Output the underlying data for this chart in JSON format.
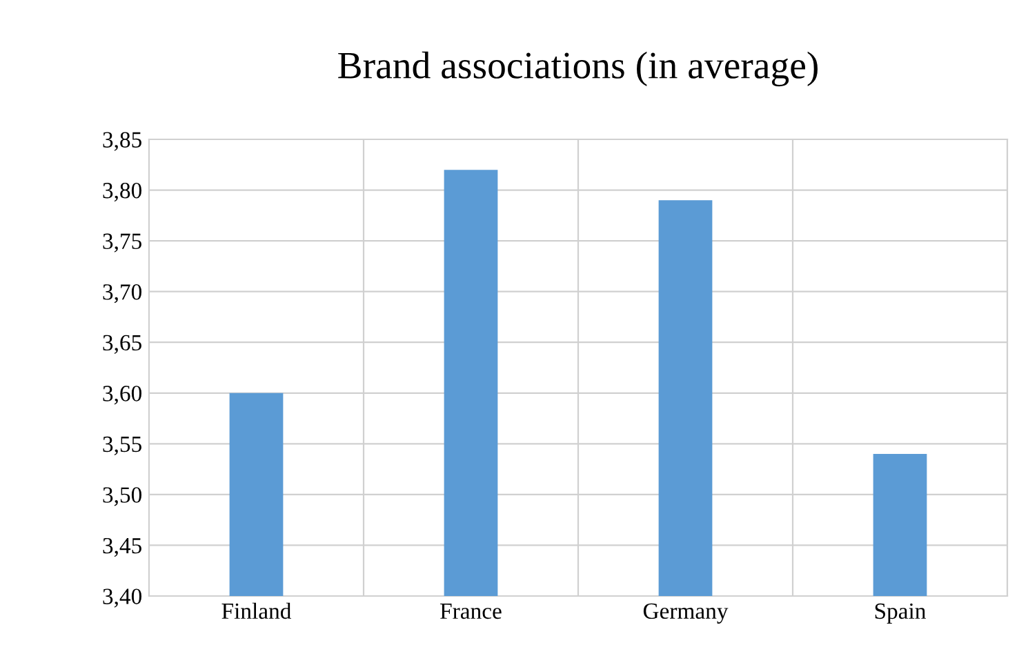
{
  "chart_data": {
    "type": "bar",
    "title": "Brand associations (in average)",
    "categories": [
      "Finland",
      "France",
      "Germany",
      "Spain"
    ],
    "values": [
      3.6,
      3.82,
      3.79,
      3.54
    ],
    "color": "#5b9bd5",
    "ylim": [
      3.4,
      3.85
    ],
    "yticks": [
      {
        "value": 3.4,
        "label": "3,40"
      },
      {
        "value": 3.45,
        "label": "3,45"
      },
      {
        "value": 3.5,
        "label": "3,50"
      },
      {
        "value": 3.55,
        "label": "3,55"
      },
      {
        "value": 3.6,
        "label": "3,60"
      },
      {
        "value": 3.65,
        "label": "3,65"
      },
      {
        "value": 3.7,
        "label": "3,70"
      },
      {
        "value": 3.75,
        "label": "3,75"
      },
      {
        "value": 3.8,
        "label": "3,80"
      },
      {
        "value": 3.85,
        "label": "3,85"
      }
    ],
    "grid": true
  }
}
